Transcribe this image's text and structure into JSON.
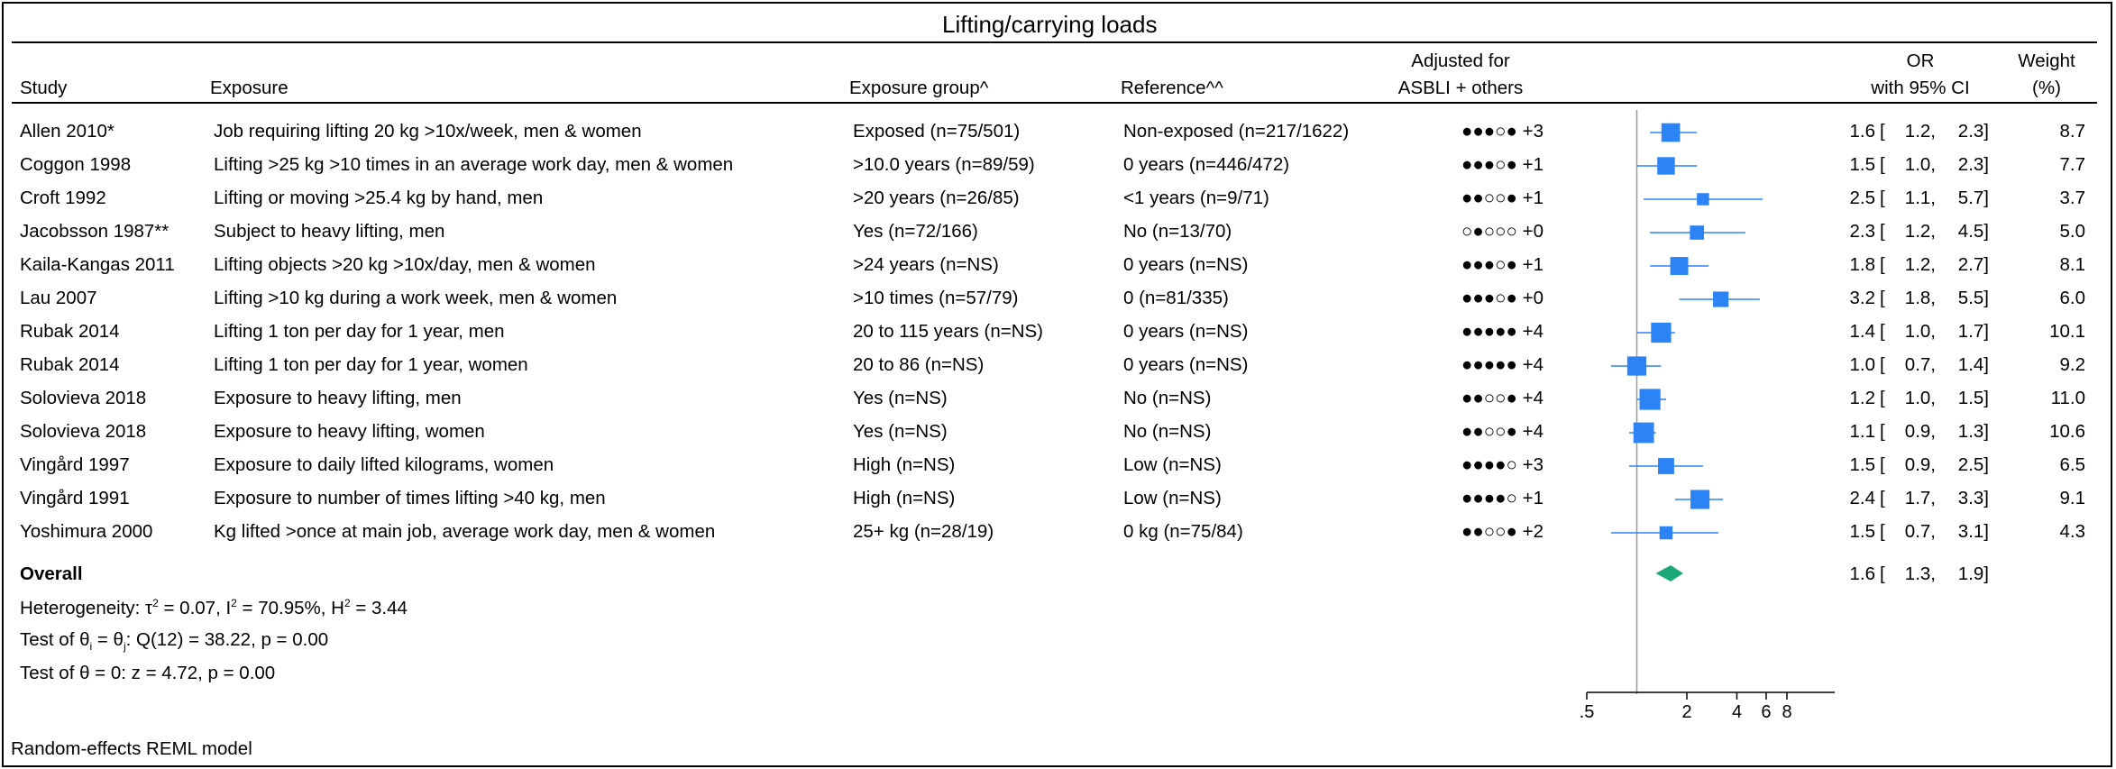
{
  "chart_data": {
    "type": "forest",
    "title": "Lifting/carrying loads",
    "columns": {
      "study": "Study",
      "exposure": "Exposure",
      "exposure_group": "Exposure group^",
      "reference": "Reference^^",
      "adjusted_line1": "Adjusted for",
      "adjusted_line2": "ASBLI + others",
      "or_line1": "OR",
      "or_line2": "with 95% CI",
      "weight_line1": "Weight",
      "weight_line2": "(%)"
    },
    "rows": [
      {
        "study": "Allen 2010*",
        "exposure": "Job requiring lifting 20 kg >10x/week, men & women",
        "group": "Exposed (n=75/501)",
        "reference": "Non-exposed (n=217/1622)",
        "adjusted": "●●●○● +3",
        "or": 1.6,
        "lo": 1.2,
        "hi": 2.3,
        "or_text": "1.6",
        "lo_text": "1.2,",
        "hi_text": "2.3]",
        "weight": "8.7"
      },
      {
        "study": "Coggon 1998",
        "exposure": "Lifting >25 kg >10 times in an average work day, men & women",
        "group": ">10.0 years (n=89/59)",
        "reference": "0 years (n=446/472)",
        "adjusted": "●●●○● +1",
        "or": 1.5,
        "lo": 1.0,
        "hi": 2.3,
        "or_text": "1.5",
        "lo_text": "1.0,",
        "hi_text": "2.3]",
        "weight": "7.7"
      },
      {
        "study": "Croft 1992",
        "exposure": "Lifting or moving >25.4 kg by hand, men",
        "group": ">20 years (n=26/85)",
        "reference": "<1 years (n=9/71)",
        "adjusted": "●●○○● +1",
        "or": 2.5,
        "lo": 1.1,
        "hi": 5.7,
        "or_text": "2.5",
        "lo_text": "1.1,",
        "hi_text": "5.7]",
        "weight": "3.7"
      },
      {
        "study": "Jacobsson 1987**",
        "exposure": "Subject to heavy lifting, men",
        "group": "Yes (n=72/166)",
        "reference": "No (n=13/70)",
        "adjusted": "○●○○○ +0",
        "or": 2.3,
        "lo": 1.2,
        "hi": 4.5,
        "or_text": "2.3",
        "lo_text": "1.2,",
        "hi_text": "4.5]",
        "weight": "5.0"
      },
      {
        "study": "Kaila-Kangas 2011",
        "exposure": "Lifting objects >20 kg >10x/day, men & women",
        "group": ">24 years (n=NS)",
        "reference": "0 years (n=NS)",
        "adjusted": "●●●○● +1",
        "or": 1.8,
        "lo": 1.2,
        "hi": 2.7,
        "or_text": "1.8",
        "lo_text": "1.2,",
        "hi_text": "2.7]",
        "weight": "8.1"
      },
      {
        "study": "Lau 2007",
        "exposure": "Lifting >10 kg during a work week, men & women",
        "group": ">10 times (n=57/79)",
        "reference": "0 (n=81/335)",
        "adjusted": "●●●○● +0",
        "or": 3.2,
        "lo": 1.8,
        "hi": 5.5,
        "or_text": "3.2",
        "lo_text": "1.8,",
        "hi_text": "5.5]",
        "weight": "6.0"
      },
      {
        "study": "Rubak 2014",
        "exposure": "Lifting 1 ton per day for 1 year, men",
        "group": "20 to 115 years (n=NS)",
        "reference": "0 years (n=NS)",
        "adjusted": "●●●●● +4",
        "or": 1.4,
        "lo": 1.0,
        "hi": 1.7,
        "or_text": "1.4",
        "lo_text": "1.0,",
        "hi_text": "1.7]",
        "weight": "10.1"
      },
      {
        "study": "Rubak 2014",
        "exposure": "Lifting 1 ton per day for 1 year, women",
        "group": "20 to 86 (n=NS)",
        "reference": "0 years (n=NS)",
        "adjusted": "●●●●● +4",
        "or": 1.0,
        "lo": 0.7,
        "hi": 1.4,
        "or_text": "1.0",
        "lo_text": "0.7,",
        "hi_text": "1.4]",
        "weight": "9.2"
      },
      {
        "study": "Solovieva 2018",
        "exposure": "Exposure to heavy lifting, men",
        "group": "Yes (n=NS)",
        "reference": "No (n=NS)",
        "adjusted": "●●○○● +4",
        "or": 1.2,
        "lo": 1.0,
        "hi": 1.5,
        "or_text": "1.2",
        "lo_text": "1.0,",
        "hi_text": "1.5]",
        "weight": "11.0"
      },
      {
        "study": "Solovieva 2018",
        "exposure": "Exposure to heavy lifting, women",
        "group": "Yes (n=NS)",
        "reference": "No (n=NS)",
        "adjusted": "●●○○● +4",
        "or": 1.1,
        "lo": 0.9,
        "hi": 1.3,
        "or_text": "1.1",
        "lo_text": "0.9,",
        "hi_text": "1.3]",
        "weight": "10.6"
      },
      {
        "study": "Vingård 1997",
        "exposure": "Exposure to daily lifted kilograms, women",
        "group": "High (n=NS)",
        "reference": "Low (n=NS)",
        "adjusted": "●●●●○ +3",
        "or": 1.5,
        "lo": 0.9,
        "hi": 2.5,
        "or_text": "1.5",
        "lo_text": "0.9,",
        "hi_text": "2.5]",
        "weight": "6.5"
      },
      {
        "study": "Vingård 1991",
        "exposure": "Exposure to number of times lifting >40 kg, men",
        "group": "High (n=NS)",
        "reference": "Low (n=NS)",
        "adjusted": "●●●●○ +1",
        "or": 2.4,
        "lo": 1.7,
        "hi": 3.3,
        "or_text": "2.4",
        "lo_text": "1.7,",
        "hi_text": "3.3]",
        "weight": "9.1"
      },
      {
        "study": "Yoshimura 2000",
        "exposure": "Kg lifted >once at main job, average work day, men & women",
        "group": "25+ kg (n=28/19)",
        "reference": "0 kg (n=75/84)",
        "adjusted": "●●○○● +2",
        "or": 1.5,
        "lo": 0.7,
        "hi": 3.1,
        "or_text": "1.5",
        "lo_text": "0.7,",
        "hi_text": "3.1]",
        "weight": "4.3"
      }
    ],
    "overall": {
      "label": "Overall",
      "or": 1.6,
      "lo": 1.3,
      "hi": 1.9,
      "or_text": "1.6",
      "lo_text": "1.3,",
      "hi_text": "1.9]"
    },
    "heterogeneity": {
      "prefix": "Heterogeneity: τ",
      "sup1": "2",
      "mid1": " = 0.07, I",
      "sup2": "2",
      "mid2": " = 70.95%, H",
      "sup3": "2",
      "end": " = 3.44"
    },
    "test_theta_i": {
      "prefix": "Test of θ",
      "sub1": "i",
      "mid": " = θ",
      "sub2": "j",
      "end": ": Q(12) = 38.22, p = 0.00"
    },
    "test_theta_0": "Test of θ = 0: z = 4.72, p = 0.00",
    "model_note": "Random-effects REML model",
    "x_axis": {
      "scale": "log",
      "ticks": [
        0.5,
        2,
        4,
        6,
        8
      ],
      "tick_labels": [
        ".5",
        "2",
        "4",
        "6",
        "8"
      ],
      "null_line": 1
    },
    "colors": {
      "marker": "#2b83f6",
      "ci": "#2b83f6",
      "overall": "#1aa87a",
      "null_line": "#999999"
    }
  }
}
